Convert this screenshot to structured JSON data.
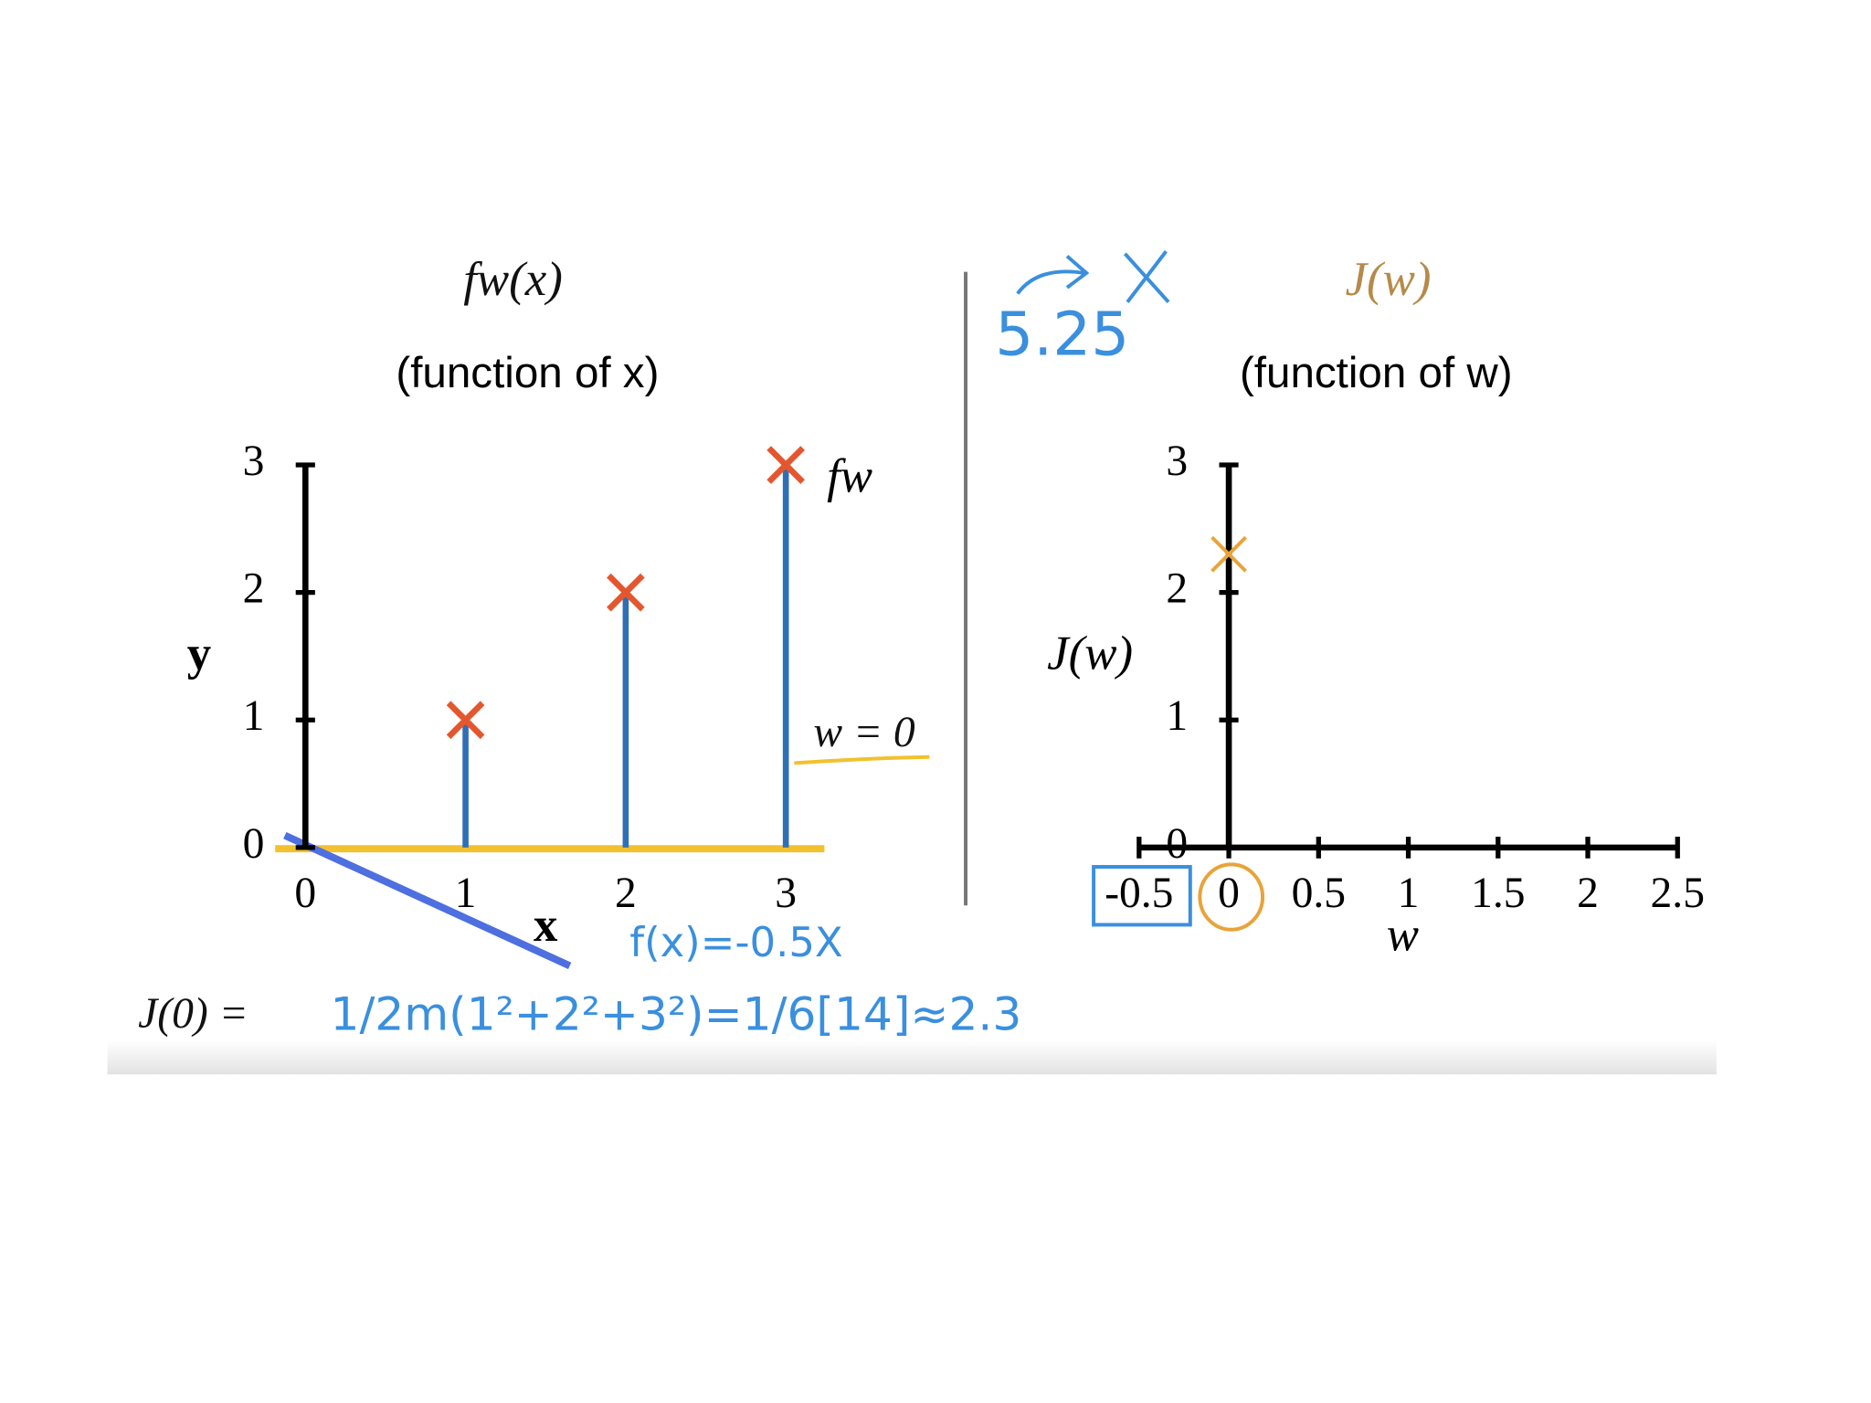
{
  "chart_data": [
    {
      "type": "scatter",
      "title": "fw(x)",
      "subtitle": "(function of x)",
      "xlabel": "x",
      "ylabel": "y",
      "xlim": [
        0,
        3
      ],
      "ylim": [
        0,
        3
      ],
      "xticks": [
        0,
        1,
        2,
        3
      ],
      "yticks": [
        0,
        1,
        2,
        3
      ],
      "series": [
        {
          "name": "fw",
          "color": "#e4572e",
          "line_color": "#2f6fb5",
          "x": [
            1,
            2,
            3
          ],
          "values": [
            1,
            2,
            3
          ]
        }
      ],
      "annotations": [
        "w = 0",
        "f(x)=-0.5X",
        "J(0) =",
        "1/2m(1²+2²+3²)=1/6[14]≈2.3"
      ]
    },
    {
      "type": "scatter",
      "title": "J(w)",
      "subtitle": "(function of w)",
      "xlabel": "w",
      "ylabel": "J(w)",
      "xlim": [
        -0.5,
        2.5
      ],
      "ylim": [
        0,
        3
      ],
      "xticks": [
        -0.5,
        0,
        0.5,
        1,
        1.5,
        2,
        2.5
      ],
      "yticks": [
        0,
        1,
        2,
        3
      ],
      "series": [
        {
          "color": "#e8a33a",
          "x": [
            0
          ],
          "values": [
            2.3
          ]
        }
      ],
      "annotations": [
        "5.25"
      ]
    }
  ]
}
